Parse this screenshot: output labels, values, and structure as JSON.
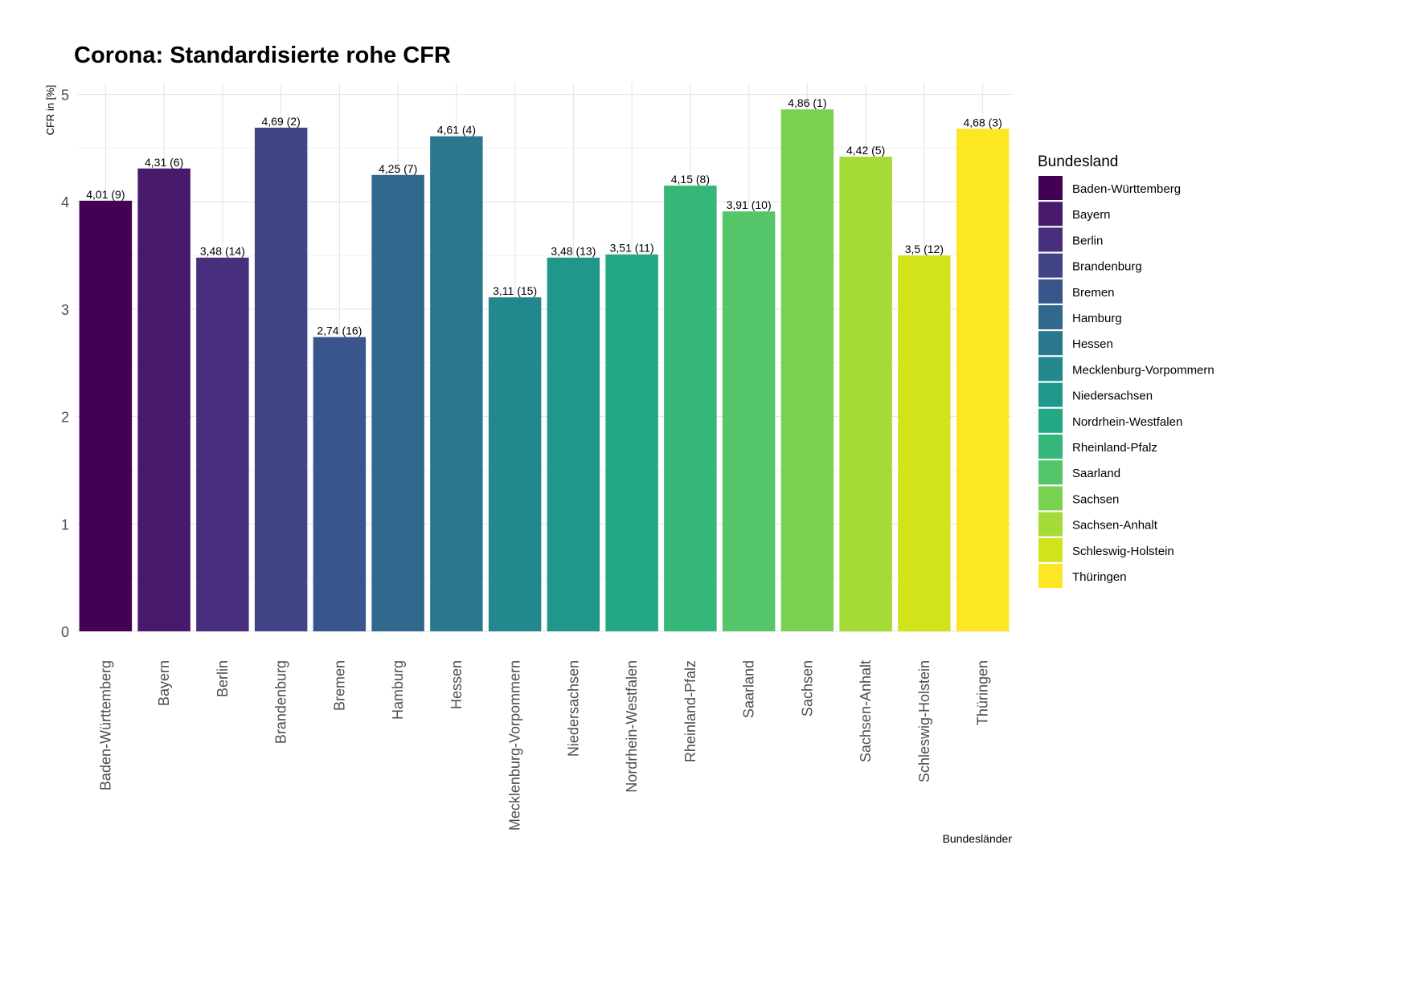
{
  "chart_data": {
    "type": "bar",
    "title": "Corona: Standardisierte rohe CFR",
    "xlabel": "Bundesländer",
    "ylabel": "CFR in [%]",
    "ylim": [
      0,
      5
    ],
    "yticks": [
      "0",
      "1",
      "2",
      "3",
      "4",
      "5"
    ],
    "grid": true,
    "legend": {
      "title": "Bundesland",
      "position": "right"
    },
    "categories": [
      "Baden-Württemberg",
      "Bayern",
      "Berlin",
      "Brandenburg",
      "Bremen",
      "Hamburg",
      "Hessen",
      "Mecklenburg-Vorpommern",
      "Niedersachsen",
      "Nordrhein-Westfalen",
      "Rheinland-Pfalz",
      "Saarland",
      "Sachsen",
      "Sachsen-Anhalt",
      "Schleswig-Holstein",
      "Thüringen"
    ],
    "values": [
      4.01,
      4.31,
      3.48,
      4.69,
      2.74,
      4.25,
      4.61,
      3.11,
      3.48,
      3.51,
      4.15,
      3.91,
      4.86,
      4.42,
      3.5,
      4.68
    ],
    "data_labels": [
      "4,01 (9)",
      "4,31 (6)",
      "3,48 (14)",
      "4,69 (2)",
      "2,74 (16)",
      "4,25 (7)",
      "4,61 (4)",
      "3,11 (15)",
      "3,48 (13)",
      "3,51 (11)",
      "4,15 (8)",
      "3,91 (10)",
      "4,86 (1)",
      "4,42 (5)",
      "3,5 (12)",
      "4,68 (3)"
    ],
    "colors": [
      "#440154",
      "#481a6c",
      "#472f7d",
      "#414487",
      "#39568c",
      "#31688e",
      "#2a788e",
      "#23888e",
      "#1f988b",
      "#22a884",
      "#35b779",
      "#54c568",
      "#7ad151",
      "#a5db36",
      "#d2e21b",
      "#fde725"
    ]
  }
}
